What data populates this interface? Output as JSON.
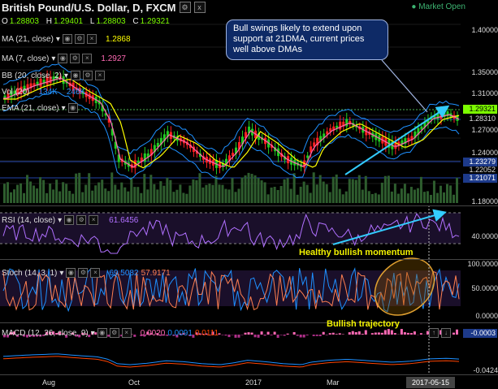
{
  "header": {
    "title": "British Pound/U.S. Dollar, D, FXCM",
    "market_status": "Market Open",
    "close_btn": "x"
  },
  "ohlc": {
    "o_label": "O",
    "o": "1.28803",
    "h_label": "H",
    "h": "1.29401",
    "l_label": "L",
    "l": "1.28803",
    "c_label": "C",
    "c": "1.29321"
  },
  "indicators": {
    "ma21": {
      "label": "MA (21, close)",
      "value": "1.2868",
      "color": "#ffff00"
    },
    "ma7": {
      "label": "MA (7, close)",
      "value": "1.2927",
      "color": "#ff69b4"
    },
    "bb": {
      "label": "BB (20, close, 2)",
      "color": "#1e90ff"
    },
    "vol": {
      "label": "Vol (20)",
      "value1": "134K",
      "value2": "246K"
    },
    "ema": {
      "label": "EMA (21, close)"
    },
    "rsi": {
      "label": "RSI (14, close)",
      "value": "61.6456"
    },
    "stoch": {
      "label": "Stoch (14, 3, 1)",
      "value1": "69.5082",
      "value2": "57.9171"
    },
    "macd": {
      "label": "MACD (12, 26, close, 9)",
      "value1": "0.0020",
      "value2": "0.0091",
      "value3": "0.0111"
    }
  },
  "price_axis": {
    "ticks": [
      "1.40000",
      "1.35000",
      "1.31000",
      "1.27000",
      "1.24000",
      "1.18000"
    ],
    "tags": [
      {
        "text": "1.29321",
        "color": "#7CFC00",
        "fg": "#000"
      },
      {
        "text": "1.28310",
        "color": "#000",
        "fg": "#ddd"
      },
      {
        "text": "1.23279",
        "color": "#1d3a8a",
        "fg": "#fff"
      },
      {
        "text": "1.22052",
        "color": "#000",
        "fg": "#ddd"
      },
      {
        "text": "1.21071",
        "color": "#1d3a8a",
        "fg": "#fff"
      }
    ]
  },
  "rsi_axis": {
    "ticks": [
      "40.0000"
    ]
  },
  "stoch_axis": {
    "ticks": [
      "100.0000",
      "50.0000",
      "0.0000"
    ]
  },
  "macd_axis": {
    "value": "-0.0003",
    "bottom": "-0.0424"
  },
  "annotations": {
    "bubble": "Bull swings likely to extend upon support at 21DMA, current prices well above DMAs",
    "momentum": "Healthy bullish momentum",
    "trajectory": "Bullish trajectory"
  },
  "x_axis": {
    "labels": [
      "Aug",
      "Oct",
      "2017",
      "Mar"
    ],
    "current_date": "2017-05-15"
  },
  "colors": {
    "up": "#22cc22",
    "down": "#ff2222",
    "ma21": "#ffff00",
    "ma7": "#ff69b4",
    "bb": "#1e90ff",
    "arrow": "#33ccff"
  }
}
